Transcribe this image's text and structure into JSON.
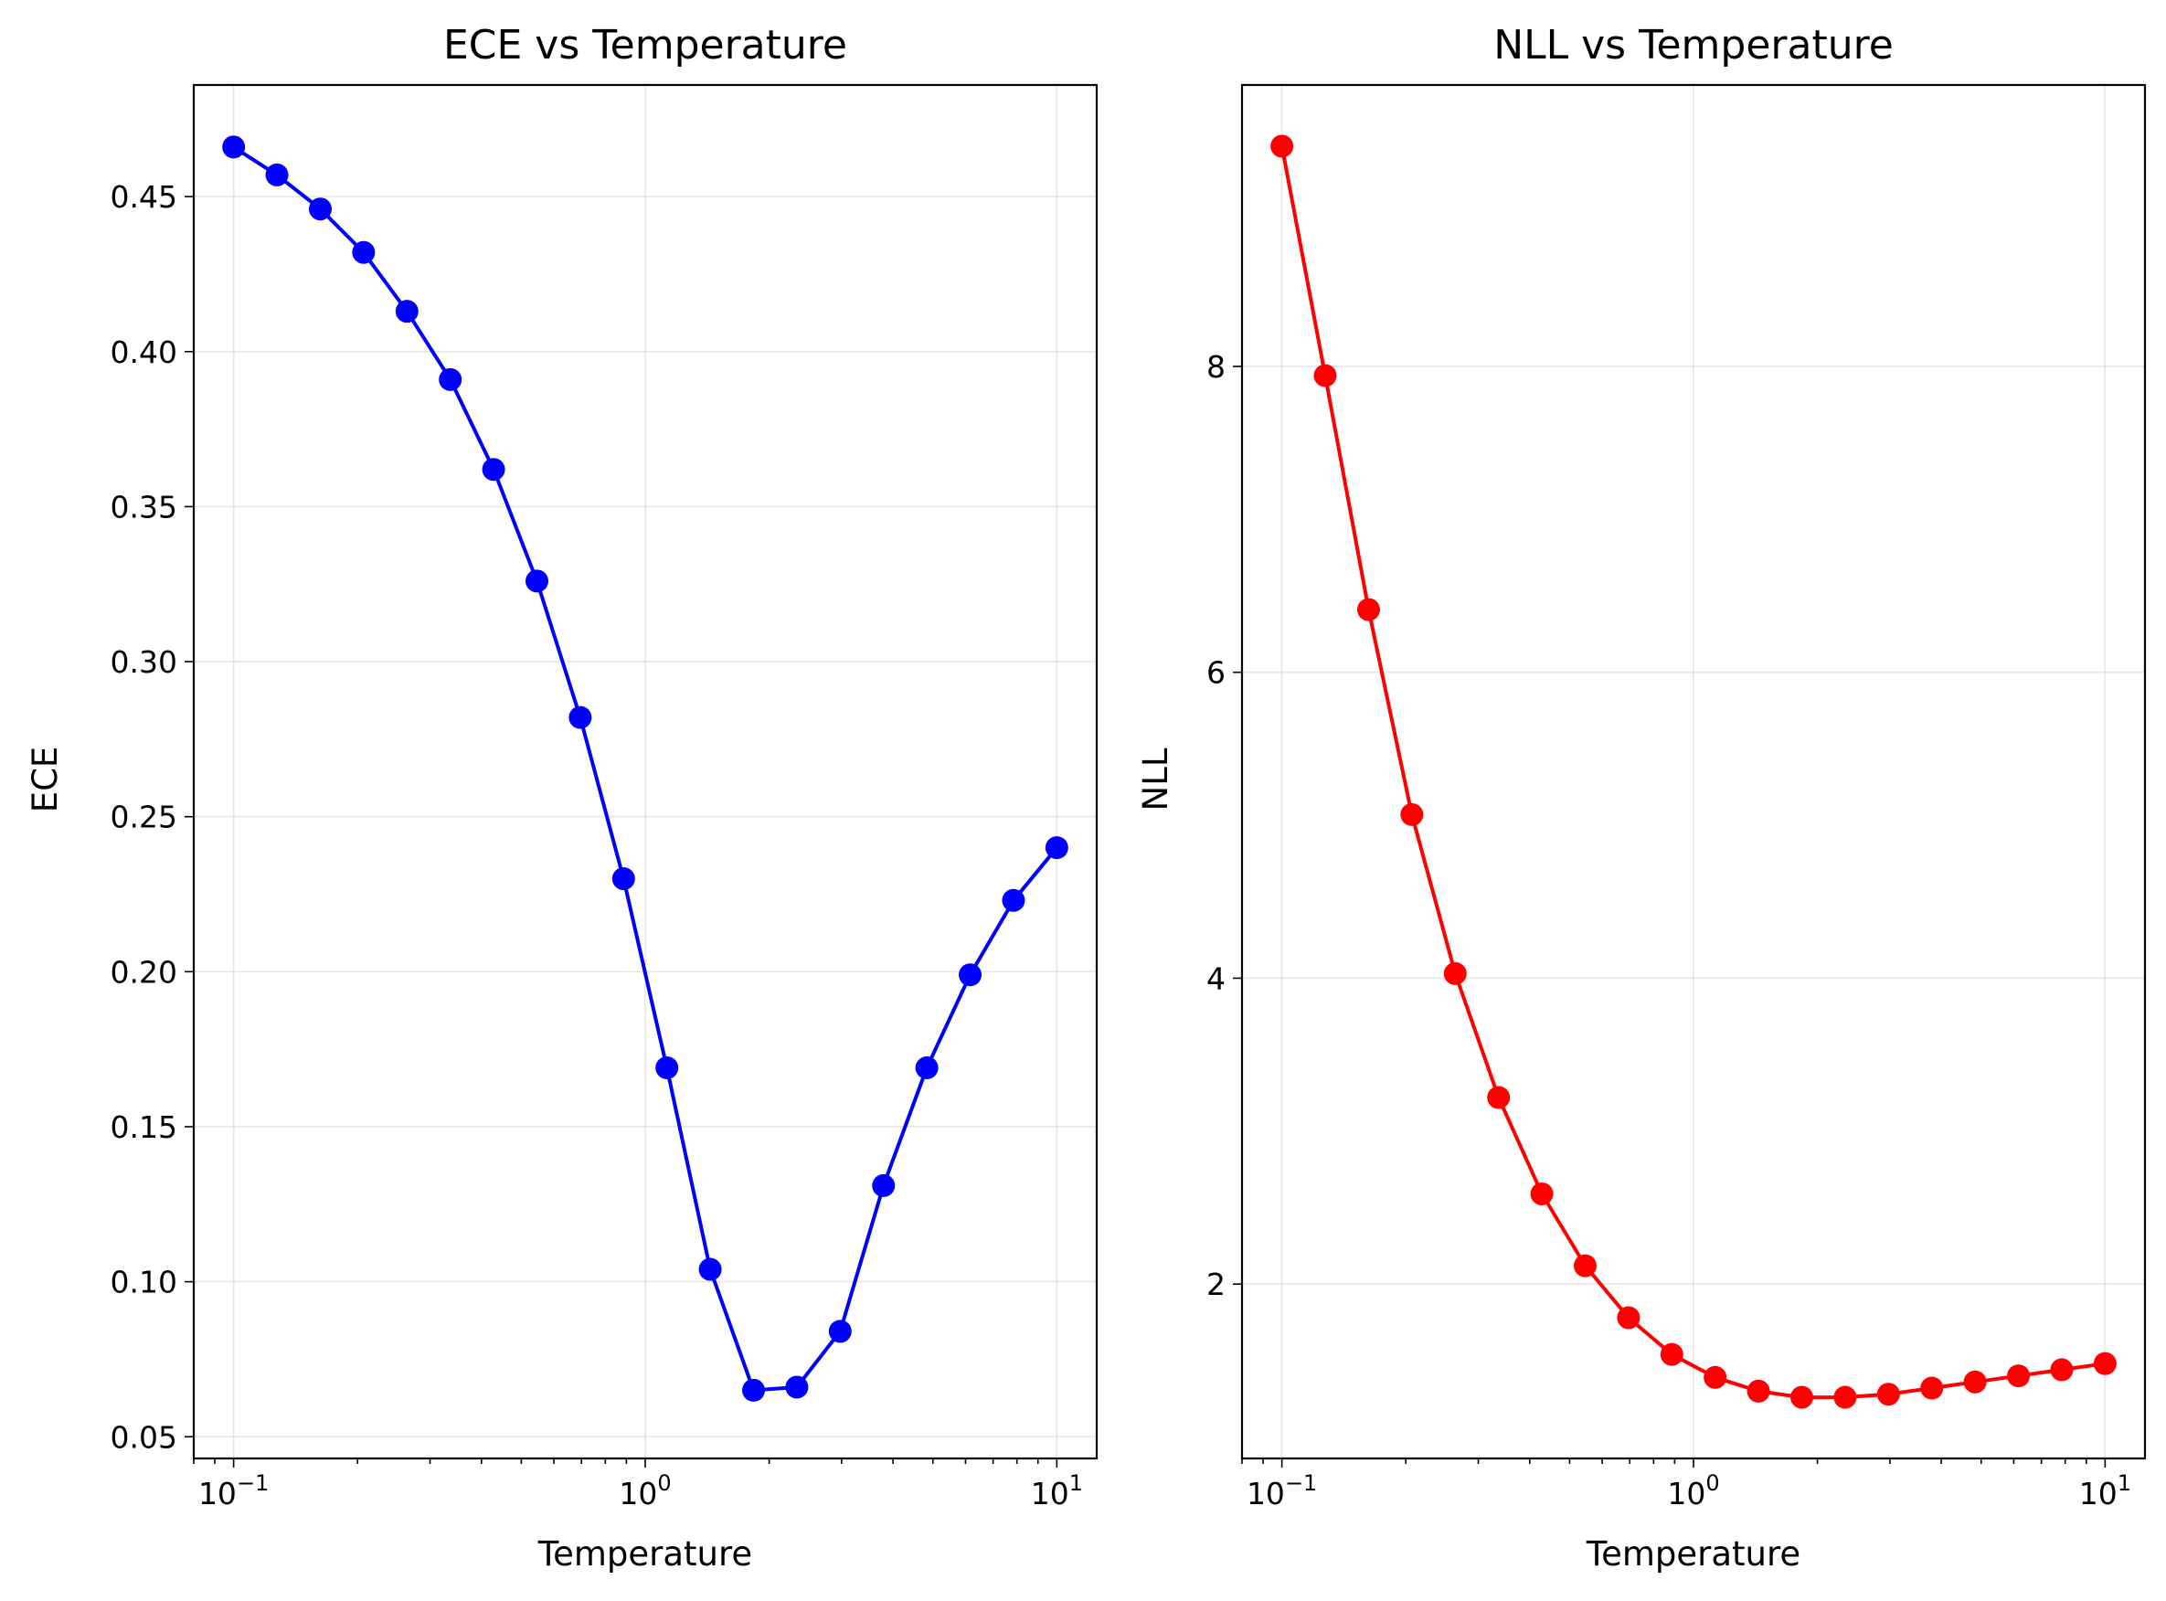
{
  "chart_data": [
    {
      "type": "line",
      "title": "ECE vs Temperature",
      "xlabel": "Temperature",
      "ylabel": "ECE",
      "xscale": "log",
      "xlim": [
        0.08,
        12.5
      ],
      "ylim": [
        0.043,
        0.486
      ],
      "xticks": [
        {
          "base": "10",
          "exp": "−1"
        },
        {
          "base": "10",
          "exp": "0"
        },
        {
          "base": "10",
          "exp": "1"
        }
      ],
      "yticks": [
        "0.05",
        "0.10",
        "0.15",
        "0.20",
        "0.25",
        "0.30",
        "0.35",
        "0.40",
        "0.45"
      ],
      "grid": true,
      "color": "#0000ff",
      "marker": "circle",
      "x": [
        0.1,
        0.1274,
        0.1624,
        0.2069,
        0.2637,
        0.336,
        0.4281,
        0.5456,
        0.6952,
        0.8859,
        1.1288,
        1.4384,
        1.833,
        2.3357,
        2.9764,
        3.7927,
        4.8329,
        6.1585,
        7.8476,
        10.0
      ],
      "y": [
        0.466,
        0.457,
        0.446,
        0.432,
        0.413,
        0.391,
        0.362,
        0.326,
        0.282,
        0.23,
        0.169,
        0.104,
        0.065,
        0.066,
        0.084,
        0.131,
        0.169,
        0.199,
        0.223,
        0.24
      ]
    },
    {
      "type": "line",
      "title": "NLL vs Temperature",
      "xlabel": "Temperature",
      "ylabel": "NLL",
      "xscale": "log",
      "xlim": [
        0.08,
        12.5
      ],
      "ylim": [
        0.86,
        9.84
      ],
      "xticks": [
        {
          "base": "10",
          "exp": "−1"
        },
        {
          "base": "10",
          "exp": "0"
        },
        {
          "base": "10",
          "exp": "1"
        }
      ],
      "yticks": [
        "2",
        "4",
        "6",
        "8"
      ],
      "grid": true,
      "color": "#ff0000",
      "marker": "circle",
      "x": [
        0.1,
        0.1274,
        0.1624,
        0.2069,
        0.2637,
        0.336,
        0.4281,
        0.5456,
        0.6952,
        0.8859,
        1.1288,
        1.4384,
        1.833,
        2.3357,
        2.9764,
        3.7927,
        4.8329,
        6.1585,
        7.8476,
        10.0
      ],
      "y": [
        9.44,
        7.94,
        6.41,
        5.07,
        4.03,
        3.22,
        2.59,
        2.12,
        1.78,
        1.54,
        1.39,
        1.3,
        1.26,
        1.26,
        1.28,
        1.32,
        1.36,
        1.4,
        1.44,
        1.48
      ]
    }
  ]
}
